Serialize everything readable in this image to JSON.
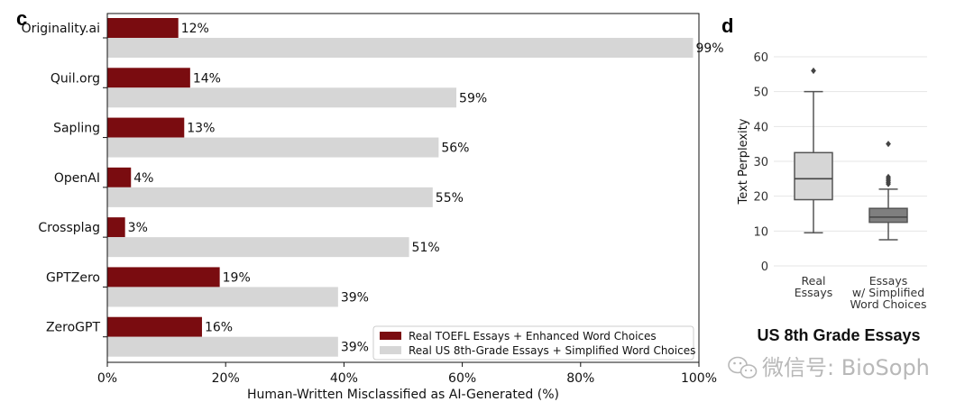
{
  "chart_data": [
    {
      "type": "bar",
      "orientation": "horizontal",
      "panel": "c",
      "categories": [
        "Originality.ai",
        "Quil.org",
        "Sapling",
        "OpenAI",
        "Crossplag",
        "GPTZero",
        "ZeroGPT"
      ],
      "series": [
        {
          "name": "Real TOEFL Essays + Enhanced Word Choices",
          "color": "#7a0c10",
          "values": [
            12,
            14,
            13,
            4,
            3,
            19,
            16
          ],
          "labels": [
            "12%",
            "14%",
            "13%",
            "4%",
            "3%",
            "19%",
            "16%"
          ]
        },
        {
          "name": "Real US 8th-Grade Essays + Simplified Word Choices",
          "color": "#d6d6d6",
          "values": [
            99,
            59,
            56,
            55,
            51,
            39,
            39
          ],
          "labels": [
            "99%",
            "59%",
            "56%",
            "55%",
            "51%",
            "39%",
            "39%"
          ]
        }
      ],
      "xlabel": "Human-Written Misclassified as AI-Generated (%)",
      "xlim": [
        0,
        100
      ],
      "xticks": [
        0,
        20,
        40,
        60,
        80,
        100
      ],
      "xtick_labels": [
        "0%",
        "20%",
        "40%",
        "60%",
        "80%",
        "100%"
      ],
      "legend": "bottom-right"
    },
    {
      "type": "box",
      "panel": "d",
      "title": "US 8th Grade Essays",
      "ylabel": "Text Perplexity",
      "ylim": [
        0,
        60
      ],
      "yticks": [
        0,
        10,
        20,
        30,
        40,
        50,
        60
      ],
      "grid": true,
      "boxes": [
        {
          "label_lines": [
            "Real",
            "Essays"
          ],
          "color": "#d6d6d6",
          "whisker_low": 9.5,
          "q1": 19,
          "median": 25,
          "q3": 32.5,
          "whisker_high": 50,
          "outliers": [
            56
          ]
        },
        {
          "label_lines": [
            "Essays",
            "w/ Simplified",
            "Word Choices"
          ],
          "color": "#7f7f7f",
          "whisker_low": 7.5,
          "q1": 12.5,
          "median": 14,
          "q3": 16.5,
          "whisker_high": 22,
          "outliers": [
            23.5,
            24,
            24.5,
            25,
            25.5,
            35
          ]
        }
      ]
    }
  ],
  "panel_letters": {
    "c": "c",
    "d": "d"
  },
  "watermark": {
    "text": "微信号: BioSoph",
    "icon": "wechat-icon"
  }
}
